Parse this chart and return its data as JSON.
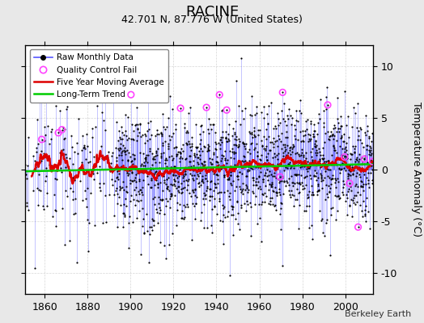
{
  "title": "RACINE",
  "subtitle": "42.701 N, 87.776 W (United States)",
  "ylabel": "Temperature Anomaly (°C)",
  "watermark": "Berkeley Earth",
  "year_start": 1850,
  "year_end": 2013,
  "xlim": [
    1851,
    2013
  ],
  "ylim": [
    -12,
    12
  ],
  "yticks": [
    -10,
    -5,
    0,
    5,
    10
  ],
  "xticks": [
    1860,
    1880,
    1900,
    1920,
    1940,
    1960,
    1980,
    2000
  ],
  "seed": 17,
  "background_color": "#e8e8e8",
  "plot_bg_color": "#ffffff",
  "raw_line_color": "#5555ff",
  "raw_dot_color": "#000000",
  "qc_fail_color": "#ff44ff",
  "moving_avg_color": "#dd0000",
  "trend_color": "#00cc00",
  "grid_color": "#cccccc"
}
